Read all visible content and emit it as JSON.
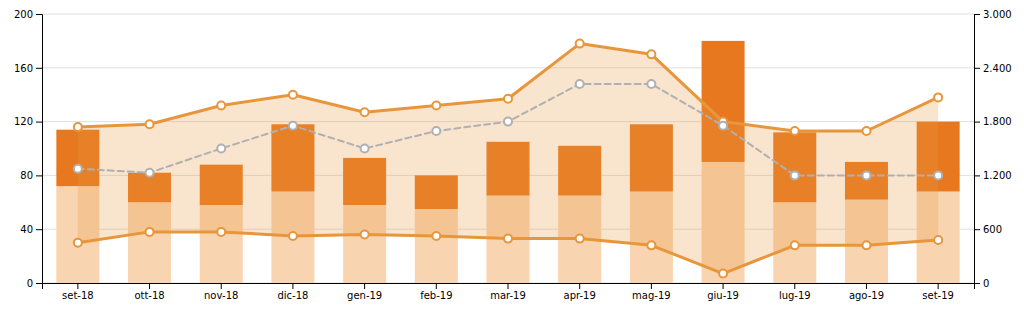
{
  "chart_data": {
    "type": "bar",
    "stacked": true,
    "grid": true,
    "categories": [
      "set-18",
      "ott-18",
      "nov-18",
      "dic-18",
      "gen-19",
      "feb-19",
      "mar-19",
      "apr-19",
      "mag-19",
      "giu-19",
      "lug-19",
      "ago-19",
      "set-19"
    ],
    "series": [
      {
        "type": "bar",
        "color": "#F9D4B0",
        "values": [
          72,
          60,
          58,
          68,
          58,
          55,
          65,
          65,
          68,
          90,
          60,
          62,
          68
        ]
      },
      {
        "type": "bar",
        "color": "#E87820",
        "values": [
          42,
          22,
          30,
          50,
          35,
          25,
          40,
          37,
          50,
          90,
          52,
          28,
          52
        ]
      },
      {
        "type": "line",
        "color": "#E8963C",
        "marker": "circle",
        "line_style": "solid",
        "values": [
          116,
          118,
          132,
          140,
          127,
          132,
          137,
          178,
          170,
          120,
          113,
          113,
          138
        ]
      },
      {
        "type": "line",
        "color": "#E8963C",
        "marker": "circle",
        "line_style": "solid",
        "values": [
          30,
          38,
          38,
          35,
          36,
          35,
          33,
          33,
          28,
          7,
          28,
          28,
          32
        ]
      },
      {
        "type": "line",
        "color": "#B0B0B0",
        "marker": "circle",
        "line_style": "dashed",
        "values": [
          85,
          82,
          100,
          117,
          100,
          113,
          120,
          148,
          148,
          117,
          80,
          80,
          80
        ]
      }
    ],
    "ylim": [
      0,
      200
    ],
    "yticks": [
      0,
      40,
      80,
      120,
      160,
      200
    ],
    "y2lim": [
      0,
      3000
    ],
    "y2ticks": [
      0,
      600,
      {
        "value": 1200,
        "label": "1.200"
      },
      {
        "value": 1800,
        "label": "1.800"
      },
      {
        "value": 2400,
        "label": "2.400"
      },
      {
        "value": 3000,
        "label": "3.000"
      }
    ]
  }
}
